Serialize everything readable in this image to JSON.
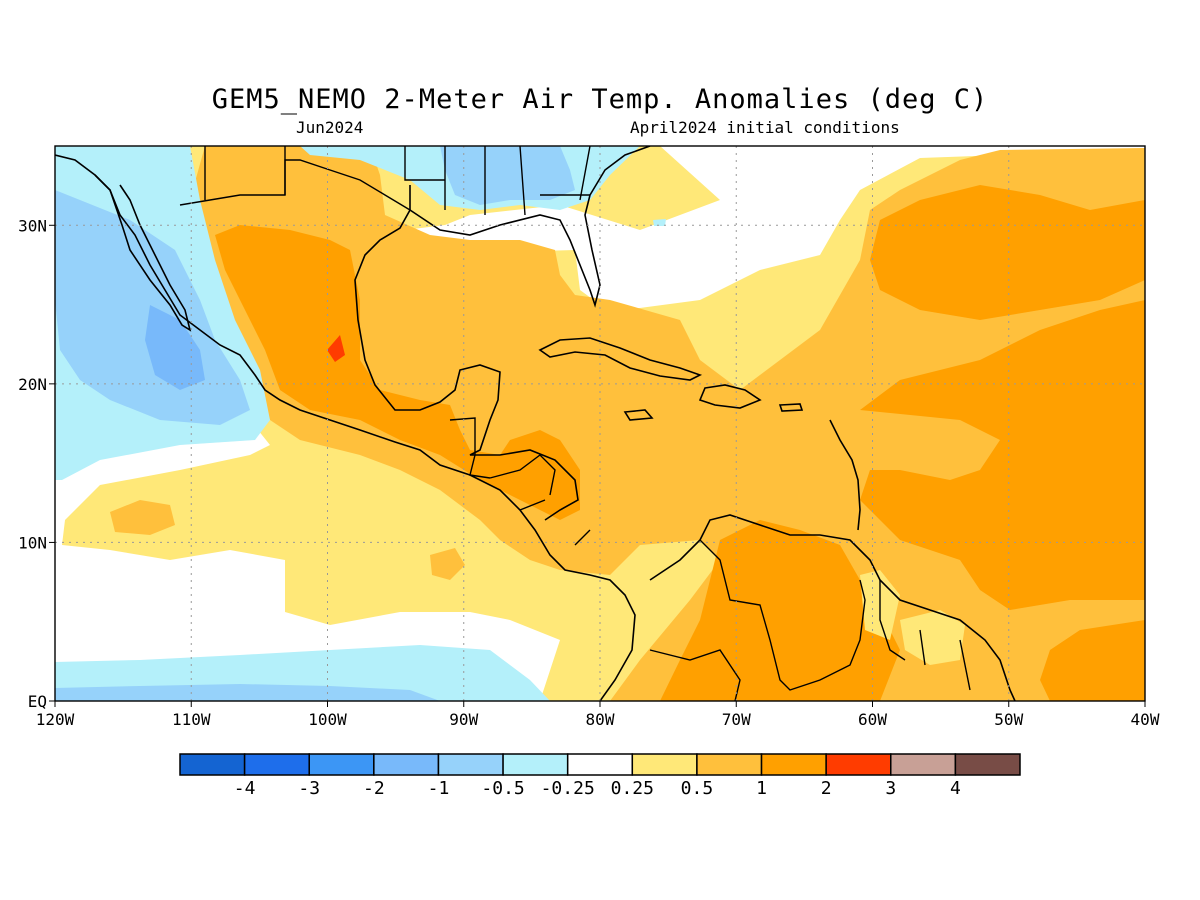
{
  "title": "GEM5_NEMO 2-Meter Air Temp. Anomalies (deg C)",
  "valid_month": "Jun2024",
  "initial_conditions": "April2024 initial conditions",
  "map": {
    "lon_ticks": [
      "120W",
      "110W",
      "100W",
      "90W",
      "80W",
      "70W",
      "60W",
      "50W",
      "40W"
    ],
    "lat_ticks": [
      "EQ",
      "10N",
      "20N",
      "30N"
    ],
    "lon_range": [
      -120,
      -40
    ],
    "lat_range": [
      0,
      35
    ],
    "grid": "dotted"
  },
  "colorbar": {
    "labels": [
      "-4",
      "-3",
      "-2",
      "-1",
      "-0.5",
      "-0.25",
      "0.25",
      "0.5",
      "1",
      "2",
      "3",
      "4"
    ],
    "colors": [
      "#1464d2",
      "#1e6eeb",
      "#3c96f5",
      "#78b9fa",
      "#96d2fa",
      "#b4f0fa",
      "#ffffff",
      "#ffe878",
      "#ffc03c",
      "#ffa000",
      "#ff3c00",
      "#c8a096",
      "#784c46"
    ]
  },
  "colors": {
    "warm_light": "#ffe878",
    "warm_mid": "#ffc03c",
    "warm_strong": "#ffa000",
    "hot": "#ff3c00",
    "cool_light": "#b4f0fa",
    "cool_mid": "#96d2fa",
    "cool_strong": "#78b9fa"
  }
}
